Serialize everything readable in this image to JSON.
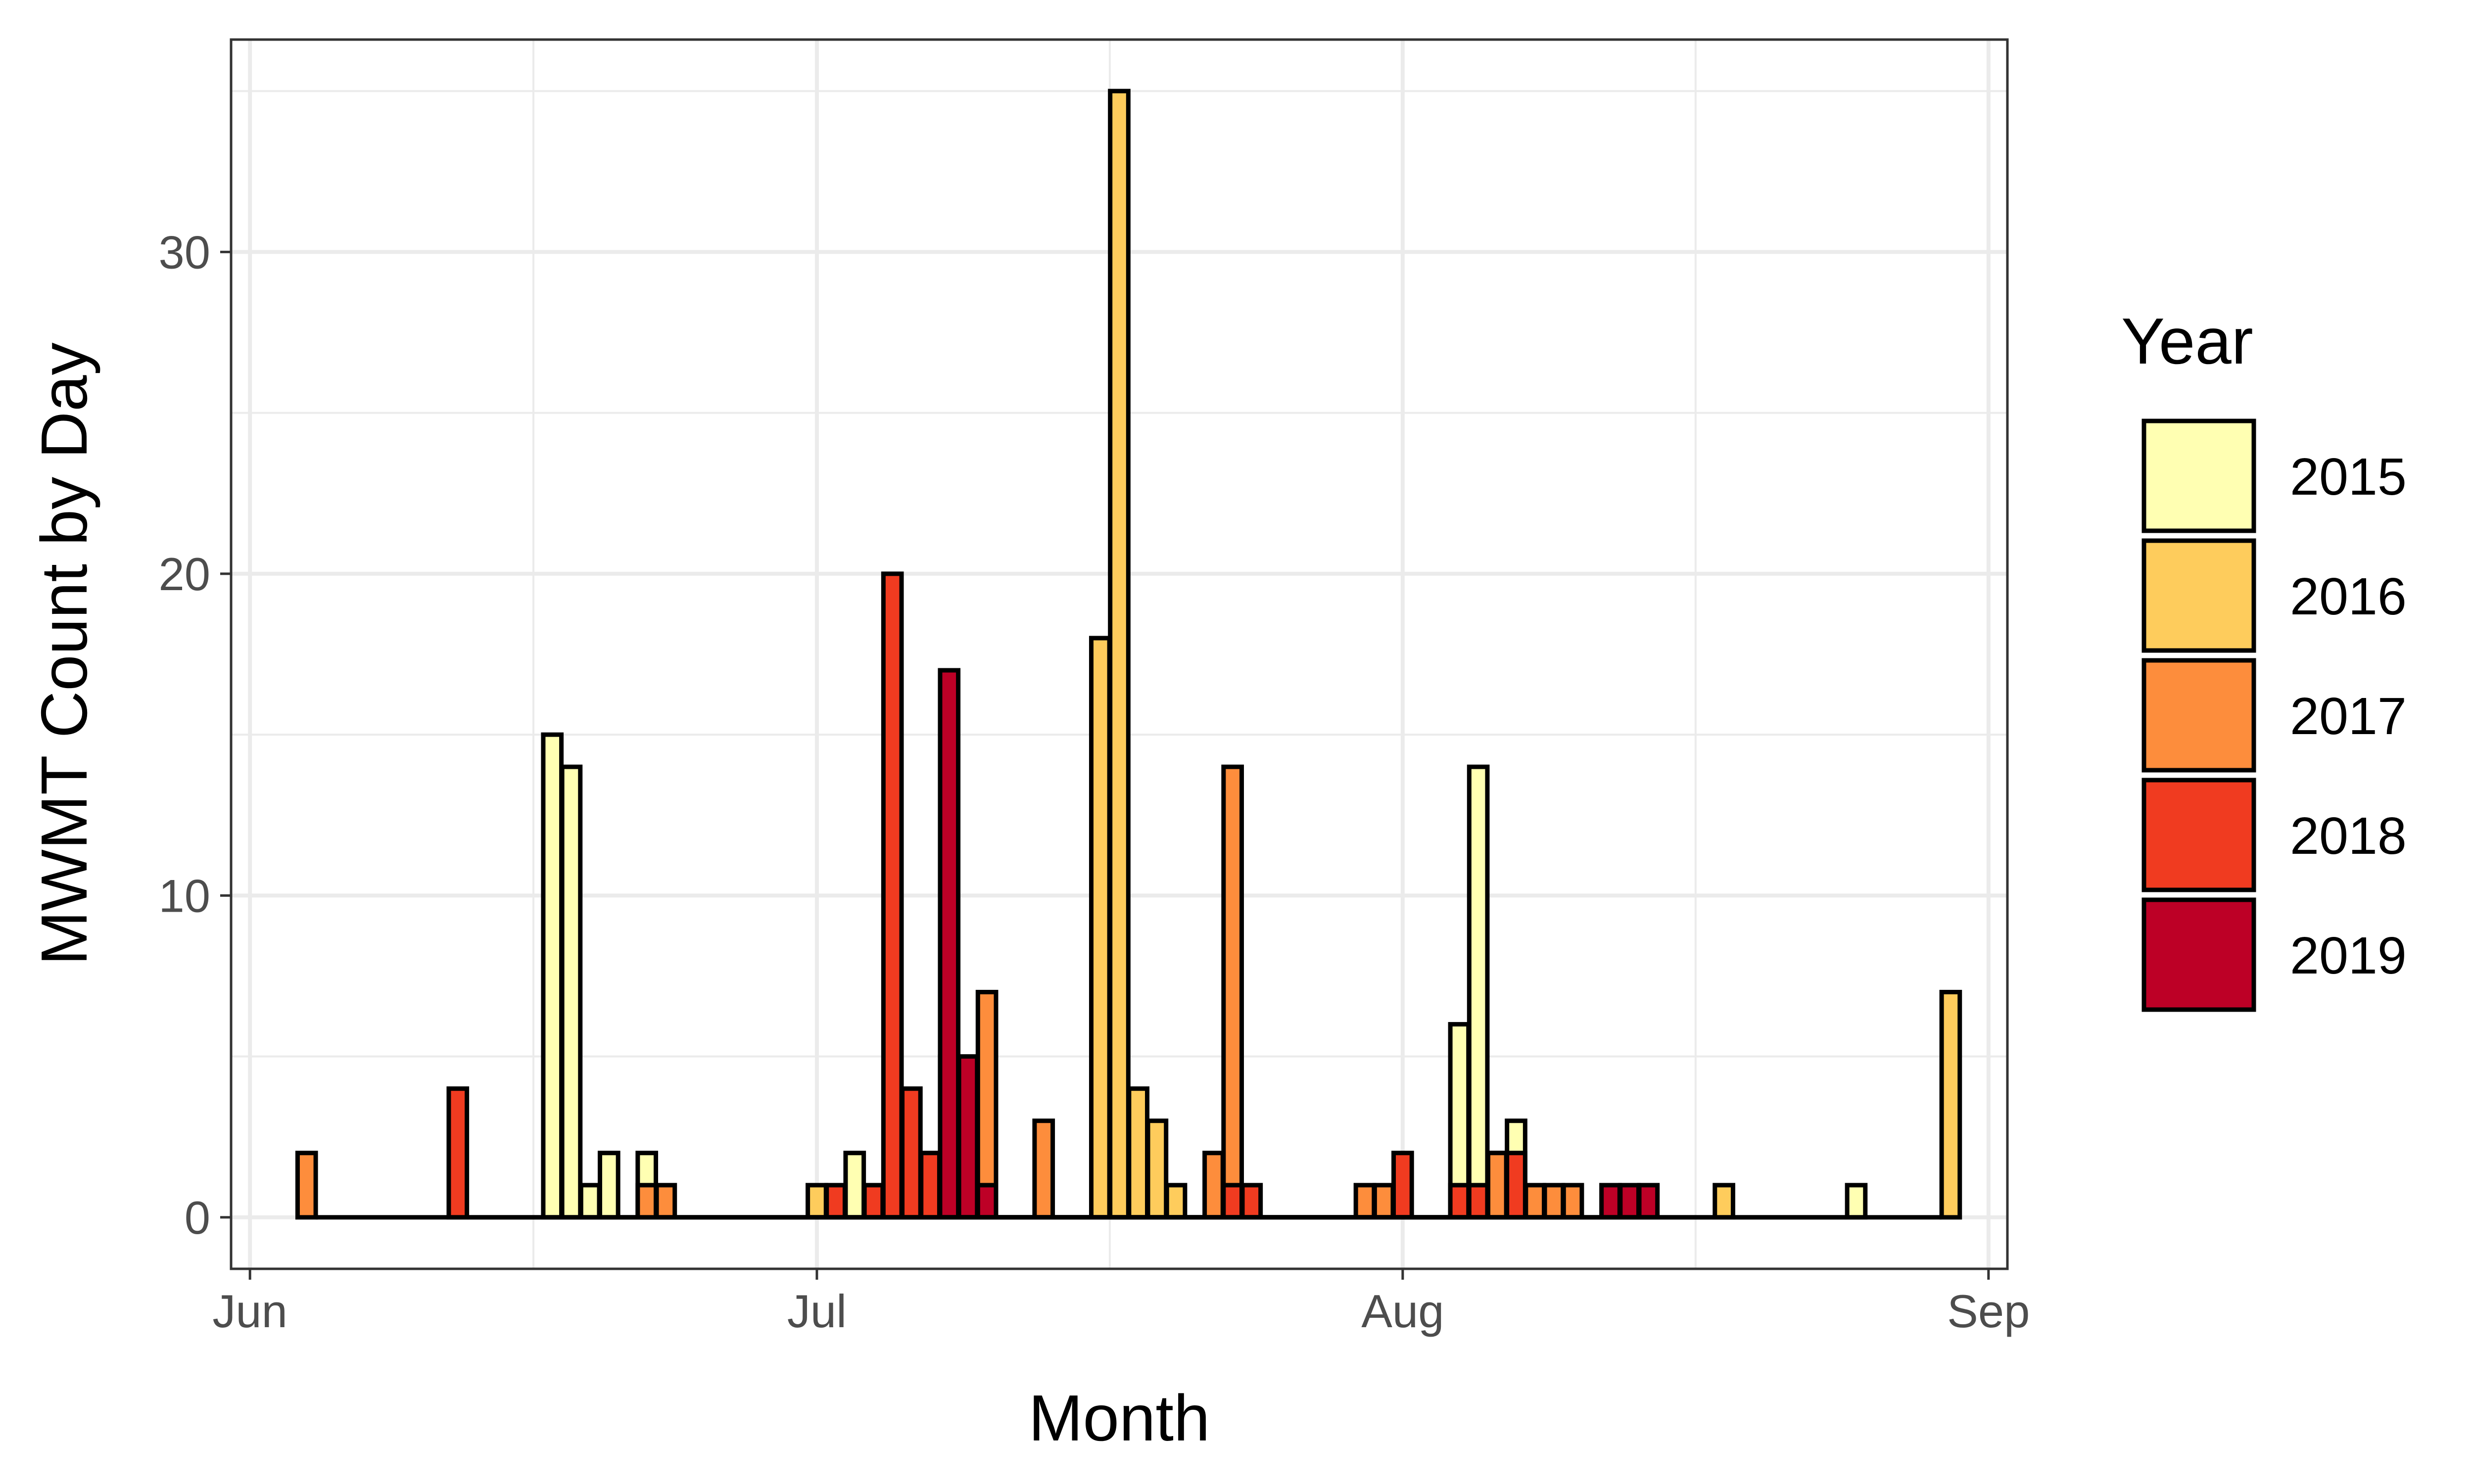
{
  "chart_data": {
    "type": "bar",
    "title": "",
    "xlabel": "Month",
    "ylabel": "MWMT Count by Day",
    "x_axis_type": "date",
    "x_range": [
      "2020-05-31",
      "2020-09-02"
    ],
    "x_ticks": [
      {
        "date": "2020-06-01",
        "label": "Jun"
      },
      {
        "date": "2020-07-01",
        "label": "Jul"
      },
      {
        "date": "2020-08-01",
        "label": "Aug"
      },
      {
        "date": "2020-09-01",
        "label": "Sep"
      }
    ],
    "ylim": [
      -1.6,
      36.6
    ],
    "y_ticks": [
      0,
      10,
      20,
      30
    ],
    "grid": true,
    "legend": {
      "title": "Year",
      "position": "right"
    },
    "series": [
      {
        "name": "2015",
        "color": "#FFFFB2",
        "data": [
          [
            "2020-06-17",
            15
          ],
          [
            "2020-06-18",
            14
          ],
          [
            "2020-06-19",
            1
          ],
          [
            "2020-06-20",
            2
          ],
          [
            "2020-06-22",
            2
          ],
          [
            "2020-07-03",
            2
          ],
          [
            "2020-08-04",
            6
          ],
          [
            "2020-08-05",
            14
          ],
          [
            "2020-08-06",
            2
          ],
          [
            "2020-08-07",
            3
          ],
          [
            "2020-08-25",
            1
          ]
        ]
      },
      {
        "name": "2016",
        "color": "#FECC5C",
        "data": [
          [
            "2020-07-01",
            1
          ],
          [
            "2020-07-07",
            1
          ],
          [
            "2020-07-16",
            18
          ],
          [
            "2020-07-17",
            35
          ],
          [
            "2020-07-18",
            4
          ],
          [
            "2020-07-19",
            3
          ],
          [
            "2020-07-20",
            1
          ],
          [
            "2020-08-18",
            1
          ],
          [
            "2020-08-30",
            7
          ]
        ]
      },
      {
        "name": "2017",
        "color": "#FD8D3C",
        "data": [
          [
            "2020-06-04",
            2
          ],
          [
            "2020-06-22",
            1
          ],
          [
            "2020-06-23",
            1
          ],
          [
            "2020-07-08",
            5
          ],
          [
            "2020-07-10",
            7
          ],
          [
            "2020-07-13",
            3
          ],
          [
            "2020-07-22",
            2
          ],
          [
            "2020-07-23",
            14
          ],
          [
            "2020-07-30",
            1
          ],
          [
            "2020-07-31",
            1
          ],
          [
            "2020-08-06",
            2
          ],
          [
            "2020-08-08",
            1
          ],
          [
            "2020-08-09",
            1
          ],
          [
            "2020-08-10",
            1
          ]
        ]
      },
      {
        "name": "2018",
        "color": "#F03B20",
        "data": [
          [
            "2020-06-12",
            4
          ],
          [
            "2020-07-02",
            1
          ],
          [
            "2020-07-04",
            1
          ],
          [
            "2020-07-05",
            20
          ],
          [
            "2020-07-06",
            4
          ],
          [
            "2020-07-07",
            2
          ],
          [
            "2020-07-23",
            1
          ],
          [
            "2020-07-24",
            1
          ],
          [
            "2020-08-01",
            2
          ],
          [
            "2020-08-04",
            1
          ],
          [
            "2020-08-05",
            1
          ],
          [
            "2020-08-07",
            2
          ]
        ]
      },
      {
        "name": "2019",
        "color": "#BD0026",
        "data": [
          [
            "2020-07-08",
            17
          ],
          [
            "2020-07-09",
            5
          ],
          [
            "2020-07-10",
            1
          ],
          [
            "2020-08-12",
            1
          ],
          [
            "2020-08-13",
            1
          ],
          [
            "2020-08-14",
            1
          ]
        ]
      }
    ]
  }
}
